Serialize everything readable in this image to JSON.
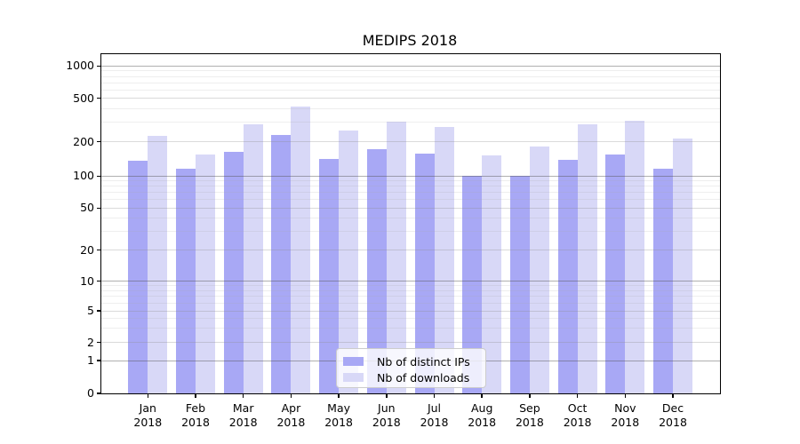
{
  "title": "MEDIPS 2018",
  "colors": {
    "distinct_ips": "#a8a8f5",
    "downloads": "#d8d8f7",
    "axis": "#000000",
    "grid_major": "rgba(80,80,80,0.45)",
    "grid_minor": "rgba(140,140,140,0.32)",
    "grid_faint": "rgba(170,170,170,0.20)",
    "legend_border": "#cccccc"
  },
  "legend": {
    "entries": [
      {
        "label": "Nb of distinct IPs",
        "series": "distinct_ips"
      },
      {
        "label": "Nb of downloads",
        "series": "downloads"
      }
    ]
  },
  "chart_data": {
    "type": "bar",
    "title": "MEDIPS 2018",
    "categories": [
      "Jan",
      "Feb",
      "Mar",
      "Apr",
      "May",
      "Jun",
      "Jul",
      "Aug",
      "Sep",
      "Oct",
      "Nov",
      "Dec"
    ],
    "category_year": "2018",
    "series": [
      {
        "name": "Nb of distinct IPs",
        "color": "#a8a8f5",
        "values": [
          137,
          115,
          164,
          230,
          140,
          171,
          156,
          100,
          100,
          138,
          155,
          116
        ]
      },
      {
        "name": "Nb of downloads",
        "color": "#d8d8f7",
        "values": [
          225,
          154,
          288,
          420,
          251,
          307,
          271,
          152,
          181,
          288,
          310,
          212
        ]
      }
    ],
    "ylabel": "",
    "xlabel": "",
    "yscale": "symlog",
    "yticks": [
      0,
      1,
      2,
      5,
      10,
      20,
      50,
      100,
      200,
      500,
      1000
    ],
    "ytick_minor": [
      2,
      5,
      20,
      50,
      200,
      500
    ],
    "ylim": [
      0,
      1280
    ],
    "grid": true,
    "legend_position": "lower center-left"
  }
}
